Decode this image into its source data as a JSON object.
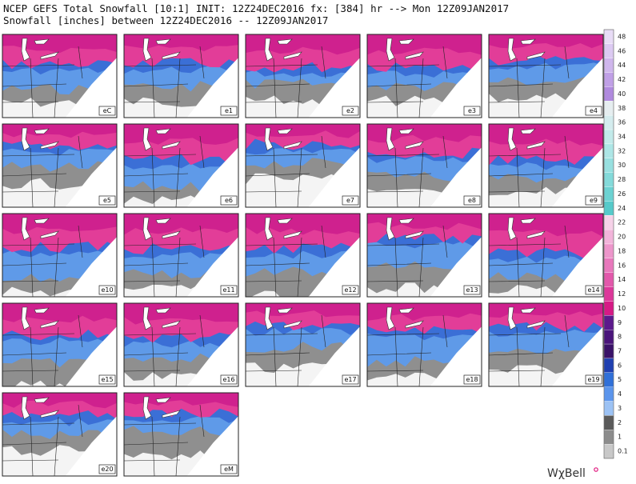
{
  "header": {
    "line1": "NCEP GEFS Total Snowfall [10:1] INIT: 12Z24DEC2016 fx: [384] hr --> Mon 12Z09JAN2017",
    "line2": "Snowfall [inches] between 12Z24DEC2016 -- 12Z09JAN2017"
  },
  "panel_labels": [
    "eC",
    "e1",
    "e2",
    "e3",
    "e4",
    "e5",
    "e6",
    "e7",
    "e8",
    "e9",
    "e10",
    "e11",
    "e12",
    "e13",
    "e14",
    "e15",
    "e16",
    "e17",
    "e18",
    "e19",
    "e20",
    "eM"
  ],
  "colorbar": {
    "ticks": [
      48,
      46,
      44,
      42,
      40,
      38,
      36,
      34,
      32,
      30,
      28,
      26,
      24,
      22,
      20,
      18,
      16,
      14,
      12,
      10,
      9,
      8,
      7,
      6,
      5,
      4,
      3,
      2,
      1,
      0.1
    ],
    "colors": [
      "#e8dcf6",
      "#dccaf2",
      "#cfb6ec",
      "#c0a0e6",
      "#b08ade",
      "#e6eef0",
      "#d4ecee",
      "#c2eaea",
      "#ade6e6",
      "#98e0e0",
      "#84dada",
      "#6cd2d2",
      "#56caca",
      "#f6d2e8",
      "#f2b4da",
      "#ed96cb",
      "#e878bc",
      "#e258ab",
      "#dc389a",
      "#d61a86",
      "#5c1a8c",
      "#4a147a",
      "#3a1268",
      "#1f3fb0",
      "#3070d8",
      "#5b95ec",
      "#9cc2f4",
      "#5a5a5a",
      "#8c8c8c",
      "#c8c8c8"
    ]
  },
  "brand": "WχBell"
}
